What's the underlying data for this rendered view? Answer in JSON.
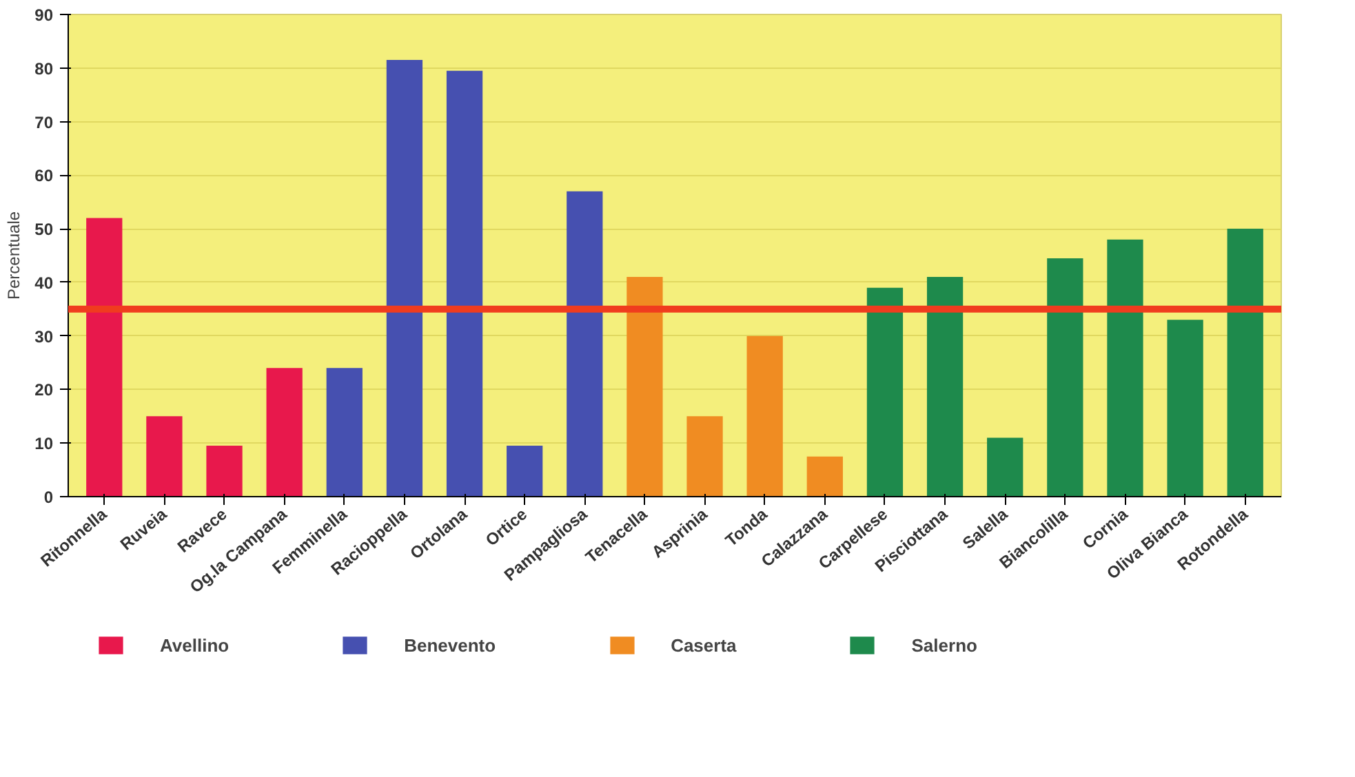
{
  "chart_data": {
    "type": "bar",
    "ylabel": "Percentuale",
    "categories": [
      "Ritonnella",
      "Ruveia",
      "Ravece",
      "Og.la Campana",
      "Femminella",
      "Racioppella",
      "Ortolana",
      "Ortice",
      "Pampagliosa",
      "Tenacella",
      "Asprinia",
      "Tonda",
      "Calazzana",
      "Carpellese",
      "Pisciottana",
      "Salella",
      "Biancolilla",
      "Cornia",
      "Oliva Bianca",
      "Rotondella"
    ],
    "series": [
      {
        "name": "Avellino",
        "color": "#e8184c",
        "values": [
          52,
          15,
          9.5,
          24,
          null,
          null,
          null,
          null,
          null,
          null,
          null,
          null,
          null,
          null,
          null,
          null,
          null,
          null,
          null,
          null
        ]
      },
      {
        "name": "Benevento",
        "color": "#4650b0",
        "values": [
          null,
          null,
          null,
          null,
          24,
          81.5,
          79.5,
          9.5,
          57,
          null,
          null,
          null,
          null,
          null,
          null,
          null,
          null,
          null,
          null,
          null
        ]
      },
      {
        "name": "Caserta",
        "color": "#f08c22",
        "values": [
          null,
          null,
          null,
          null,
          null,
          null,
          null,
          null,
          null,
          41,
          15,
          30,
          7.5,
          null,
          null,
          null,
          null,
          null,
          null,
          null
        ]
      },
      {
        "name": "Salerno",
        "color": "#1e8a4c",
        "values": [
          null,
          null,
          null,
          null,
          null,
          null,
          null,
          null,
          null,
          null,
          null,
          null,
          null,
          39,
          41,
          11,
          44.5,
          48,
          33,
          50
        ]
      }
    ],
    "ylim": [
      0,
      90
    ],
    "yticks": [
      0,
      10,
      20,
      30,
      40,
      50,
      60,
      70,
      80,
      90
    ],
    "grid": "y",
    "legend": "bottom",
    "ref_lines": [
      {
        "axis": "y",
        "value": 35,
        "color": "#f03c1e"
      }
    ]
  }
}
